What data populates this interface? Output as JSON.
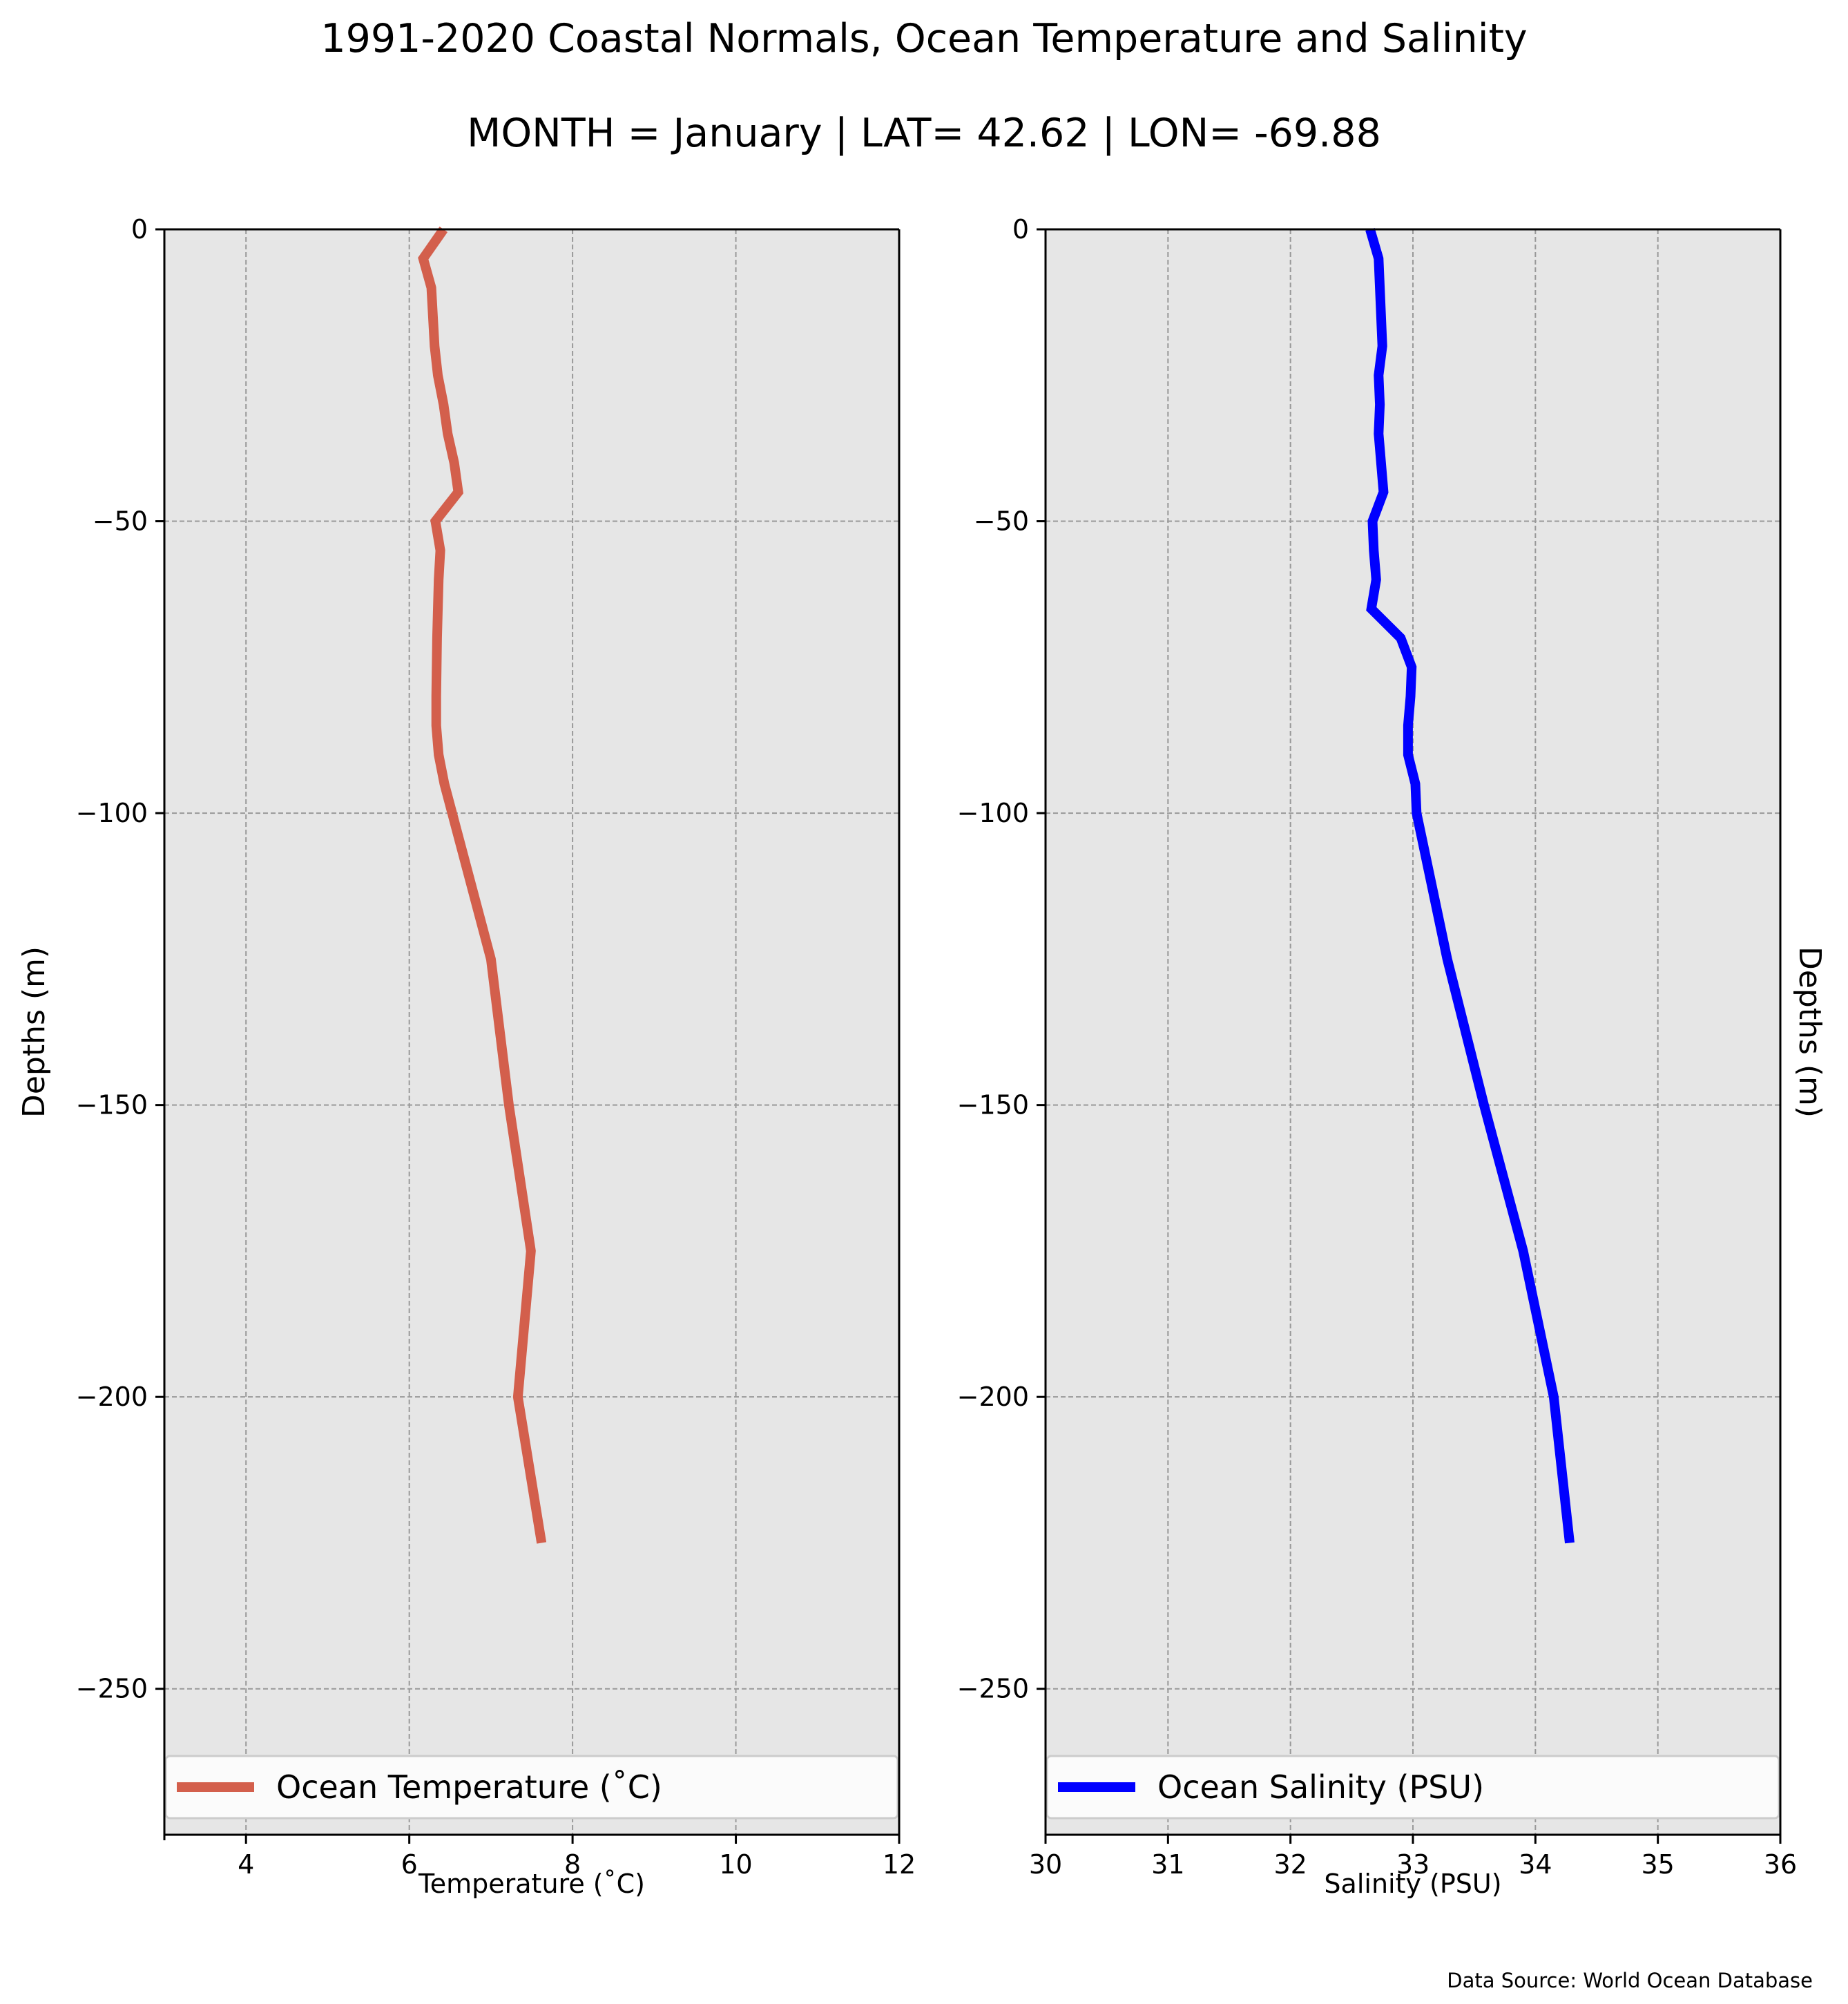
{
  "figure": {
    "title": "1991-2020 Coastal Normals, Ocean Temperature and Salinity",
    "subtitle": "MONTH = January | LAT= 42.62 | LON= -69.88",
    "source": "Data Source: World Ocean Database"
  },
  "style": {
    "panel_background": "#e6e6e6",
    "grid_color": "#999999",
    "temperature_color": "#d35f4c",
    "salinity_color": "#0000ff"
  },
  "chart_data": [
    {
      "type": "line",
      "orientation": "profile",
      "xlabel": "Temperature ($^\\circ$C)",
      "xlabel_display": "Temperature (˚C)",
      "ylabel": "Depths (m)",
      "ylabel_side": "left",
      "xlim": [
        3,
        12
      ],
      "ylim": [
        -275,
        0
      ],
      "xticks": [
        4,
        6,
        8,
        10,
        12
      ],
      "xtick_labels": [
        "4",
        "6",
        "8",
        "10",
        "12"
      ],
      "yticks": [
        0,
        -50,
        -100,
        -150,
        -200,
        -250
      ],
      "ytick_labels": [
        "0",
        "−50",
        "−100",
        "−150",
        "−200",
        "−250"
      ],
      "grid": true,
      "legend_position": "bottom",
      "series": [
        {
          "name": "Ocean Temperature (˚C)",
          "color": "#d35f4c",
          "x": [
            6.42,
            6.17,
            6.27,
            6.31,
            6.35,
            6.42,
            6.47,
            6.55,
            6.6,
            6.32,
            6.38,
            6.36,
            6.34,
            6.33,
            6.33,
            6.36,
            6.43,
            7.0,
            7.22,
            7.49,
            7.33,
            7.62
          ],
          "y": [
            0,
            -5,
            -10,
            -20,
            -25,
            -30,
            -35,
            -40,
            -45,
            -50,
            -55,
            -60,
            -70,
            -80,
            -85,
            -90,
            -95,
            -125,
            -150,
            -175,
            -200,
            -225
          ]
        }
      ]
    },
    {
      "type": "line",
      "orientation": "profile",
      "xlabel": "Salinity (PSU)",
      "ylabel": "Depths (m)",
      "ylabel_side": "right",
      "xlim": [
        30,
        36
      ],
      "ylim": [
        -275,
        0
      ],
      "xticks": [
        30,
        31,
        32,
        33,
        34,
        35,
        36
      ],
      "xtick_labels": [
        "30",
        "31",
        "32",
        "33",
        "34",
        "35",
        "36"
      ],
      "yticks": [
        0,
        -50,
        -100,
        -150,
        -200,
        -250
      ],
      "ytick_labels": [
        "0",
        "−50",
        "−100",
        "−150",
        "−200",
        "−250"
      ],
      "grid": true,
      "legend_position": "bottom",
      "series": [
        {
          "name": "Ocean Salinity (PSU)",
          "color": "#0000ff",
          "x": [
            32.65,
            32.72,
            32.73,
            32.75,
            32.72,
            32.73,
            32.72,
            32.76,
            32.67,
            32.68,
            32.7,
            32.66,
            32.9,
            32.99,
            32.98,
            32.96,
            32.96,
            33.02,
            33.03,
            33.28,
            33.58,
            33.9,
            34.15,
            34.28
          ],
          "y": [
            0,
            -5,
            -10,
            -20,
            -25,
            -30,
            -35,
            -45,
            -50,
            -55,
            -60,
            -65,
            -70,
            -75,
            -80,
            -85,
            -90,
            -95,
            -100,
            -125,
            -150,
            -175,
            -200,
            -225
          ]
        }
      ]
    }
  ]
}
